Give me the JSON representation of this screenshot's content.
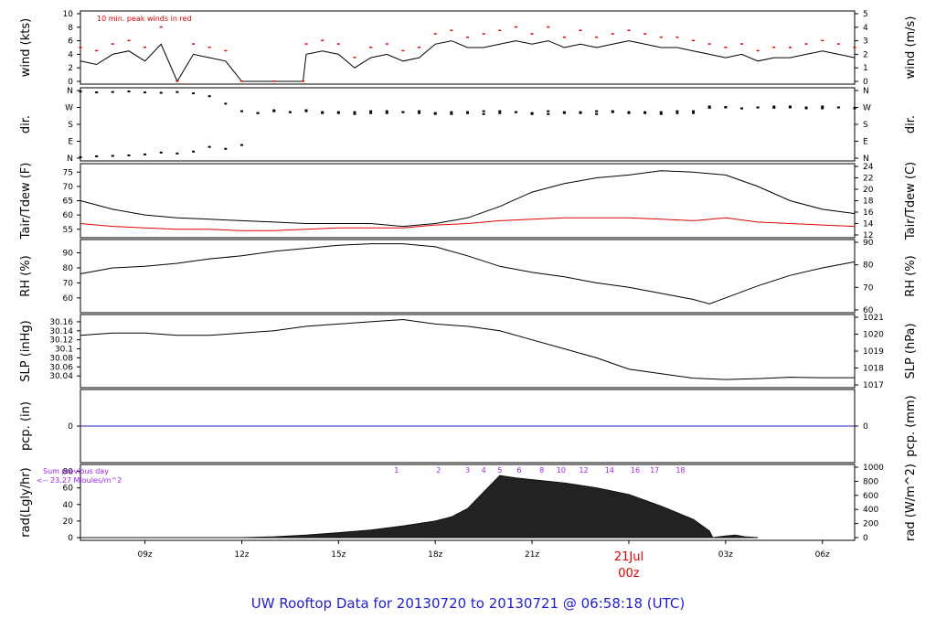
{
  "footer": {
    "title": "UW Rooftop Data for 20130720  to  20130721 @ 06:58:18  (UTC)"
  },
  "time_axis": {
    "start_hour": 7,
    "end_hour": 31,
    "ticks": [
      {
        "hour": 9,
        "label": "09z"
      },
      {
        "hour": 12,
        "label": "12z"
      },
      {
        "hour": 15,
        "label": "15z"
      },
      {
        "hour": 18,
        "label": "18z"
      },
      {
        "hour": 21,
        "label": "21z"
      },
      {
        "hour": 27,
        "label": "03z"
      },
      {
        "hour": 30,
        "label": "06z"
      }
    ],
    "date_label": {
      "hour": 24,
      "date": "21Jul",
      "time": "00z"
    }
  },
  "colors": {
    "black": "#000000",
    "red": "#e00000",
    "blue": "#1f1fd0",
    "purple": "#a020f0"
  },
  "chart_data": [
    {
      "type": "line",
      "id": "wind",
      "left_label": "wind (kts)",
      "right_label": "wind (m/s)",
      "annotation": "10 min. peak winds in red",
      "ylim": [
        0,
        10
      ],
      "left_ticks": [
        "0",
        "2",
        "4",
        "6",
        "8",
        "10"
      ],
      "right_ticks": [
        "0",
        "1",
        "2",
        "3",
        "4",
        "5"
      ],
      "x_hours": [
        7,
        7.5,
        8,
        8.5,
        9,
        9.5,
        10,
        10.5,
        11,
        11.5,
        12,
        13,
        13.9,
        14,
        14.5,
        15,
        15.5,
        16,
        16.5,
        17,
        17.5,
        18,
        18.5,
        19,
        19.5,
        20,
        20.5,
        21,
        21.5,
        22,
        22.5,
        23,
        23.5,
        24,
        24.5,
        25,
        25.5,
        26,
        26.5,
        27,
        27.5,
        28,
        28.5,
        29,
        29.5,
        30,
        30.5,
        31
      ],
      "series": [
        {
          "values": [
            3,
            2.5,
            4,
            4.5,
            3,
            5.5,
            0,
            4,
            3.5,
            3,
            0,
            0,
            0,
            4,
            4.5,
            4,
            2,
            3.5,
            4,
            3,
            3.5,
            5.5,
            6,
            5,
            5,
            5.5,
            6,
            5.5,
            6,
            5,
            5.5,
            5,
            5.5,
            6,
            5.5,
            5,
            5,
            4.5,
            4,
            3.5,
            4,
            3,
            3.5,
            3.5,
            4,
            4.5,
            4,
            3.5
          ]
        },
        {
          "values": [
            5,
            4.5,
            5.5,
            6,
            5,
            8,
            0,
            5.5,
            5,
            4.5,
            0,
            0,
            0,
            5.5,
            6,
            5.5,
            3.5,
            5,
            5.5,
            4.5,
            5,
            7,
            7.5,
            6.5,
            7,
            7.5,
            8,
            7,
            8,
            6.5,
            7.5,
            6.5,
            7,
            7.5,
            7,
            6.5,
            6.5,
            6,
            5.5,
            5,
            5.5,
            4.5,
            5,
            5,
            5.5,
            6,
            5.5,
            5
          ]
        }
      ]
    },
    {
      "type": "scatter",
      "id": "dir",
      "left_label": "dir.",
      "right_label": "dir.",
      "ylim": [
        0,
        360
      ],
      "left_ticks": [
        "N",
        "E",
        "S",
        "W",
        "N"
      ],
      "right_ticks": [
        "N",
        "E",
        "S",
        "W",
        "N"
      ],
      "x_hours": [
        7,
        7.5,
        8,
        8.5,
        9,
        9.5,
        10,
        10.5,
        11,
        11.5,
        12,
        12.5,
        13,
        13.5,
        14,
        14.5,
        15,
        15.5,
        16,
        16.5,
        17,
        17.5,
        18,
        18.5,
        19,
        19.5,
        20,
        20.5,
        21,
        21.5,
        22,
        22.5,
        23,
        23.5,
        24,
        24.5,
        25,
        25.5,
        26,
        26.5,
        27,
        27.5,
        28,
        28.5,
        29,
        29.5,
        30,
        30.5,
        31
      ],
      "series": [
        {
          "values": [
            5,
            10,
            12,
            15,
            20,
            30,
            25,
            35,
            60,
            50,
            70,
            240,
            255,
            245,
            250,
            240,
            245,
            235,
            240,
            250,
            245,
            240,
            235,
            245,
            240,
            235,
            250,
            245,
            240,
            235,
            245,
            240,
            250,
            245,
            240,
            245,
            235,
            240,
            250,
            275,
            270,
            265,
            270,
            275,
            270,
            265,
            275,
            270,
            265
          ]
        },
        {
          "values": [
            355,
            350,
            352,
            355,
            350,
            348,
            352,
            345,
            330,
            290,
            250,
            240,
            250,
            245,
            255,
            245,
            240,
            245,
            250,
            240,
            245,
            250,
            240,
            235,
            245,
            250,
            240,
            245,
            235,
            250,
            240,
            245,
            235,
            250,
            245,
            240,
            245,
            250,
            240,
            268,
            272,
            265,
            270,
            268,
            275,
            270,
            265,
            270,
            268
          ]
        }
      ]
    },
    {
      "type": "line",
      "id": "temp",
      "left_label": "Tair/Tdew (F)",
      "right_label": "Tair/Tdew (C)",
      "ylim": [
        53,
        77
      ],
      "left_ticks": [
        "55",
        "60",
        "65",
        "70",
        "75"
      ],
      "right_ticks": [
        "12",
        "14",
        "16",
        "18",
        "20",
        "22",
        "24"
      ],
      "x_hours": [
        7,
        8,
        9,
        10,
        11,
        12,
        13,
        14,
        15,
        16,
        17,
        18,
        19,
        20,
        21,
        22,
        23,
        24,
        25,
        26,
        27,
        28,
        29,
        30,
        31
      ],
      "series": [
        {
          "name": "Tair",
          "values": [
            65,
            62,
            60,
            59,
            58.5,
            58,
            57.5,
            57,
            57,
            57,
            56,
            57,
            59,
            63,
            68,
            71,
            73,
            74,
            75.5,
            75,
            74,
            70,
            65,
            62,
            60.5
          ]
        },
        {
          "name": "Tdew",
          "values": [
            57,
            56,
            55.5,
            55,
            55,
            54.5,
            54.5,
            55,
            55.5,
            55.5,
            55.5,
            56.5,
            57,
            58,
            58.5,
            59,
            59,
            59,
            58.5,
            58,
            59,
            57.5,
            57,
            56.5,
            56
          ]
        }
      ]
    },
    {
      "type": "line",
      "id": "rh",
      "left_label": "RH (%)",
      "right_label": "RH (%)",
      "ylim": [
        52,
        97
      ],
      "left_ticks": [
        "60",
        "70",
        "80",
        "90"
      ],
      "right_ticks": [
        "60",
        "70",
        "80",
        "90"
      ],
      "x_hours": [
        7,
        8,
        9,
        10,
        11,
        12,
        13,
        14,
        15,
        16,
        17,
        18,
        19,
        20,
        21,
        22,
        23,
        24,
        25,
        26,
        26.5,
        27,
        28,
        29,
        30,
        31
      ],
      "series": [
        {
          "values": [
            76,
            80,
            81,
            83,
            86,
            88,
            91,
            93,
            95,
            96,
            96,
            94,
            88,
            81,
            77,
            74,
            70,
            67,
            63,
            59,
            56,
            60,
            68,
            75,
            80,
            84
          ]
        }
      ]
    },
    {
      "type": "line",
      "id": "slp",
      "left_label": "SLP (inHg)",
      "right_label": "SLP (hPa)",
      "ylim": [
        30.02,
        30.17
      ],
      "left_ticks": [
        "30.04",
        "30.06",
        "30.08",
        "30.1",
        "30.12",
        "30.14",
        "30.16"
      ],
      "right_ticks": [
        "1017",
        "1018",
        "1019",
        "1020",
        "1021"
      ],
      "x_hours": [
        7,
        8,
        9,
        10,
        11,
        12,
        13,
        14,
        15,
        16,
        17,
        18,
        19,
        20,
        21,
        22,
        23,
        24,
        25,
        26,
        27,
        28,
        29,
        30,
        31
      ],
      "series": [
        {
          "values": [
            30.13,
            30.135,
            30.135,
            30.13,
            30.13,
            30.135,
            30.14,
            30.15,
            30.155,
            30.16,
            30.165,
            30.155,
            30.15,
            30.14,
            30.12,
            30.1,
            30.08,
            30.055,
            30.045,
            30.035,
            30.032,
            30.034,
            30.037,
            30.036,
            30.036
          ]
        }
      ]
    },
    {
      "type": "line",
      "id": "pcp",
      "left_label": "pcp. (in)",
      "right_label": "pcp. (mm)",
      "ylim": [
        -1,
        1
      ],
      "left_ticks": [
        "0"
      ],
      "right_ticks": [
        "0"
      ],
      "x_hours": [
        7,
        31
      ],
      "series": [
        {
          "values": [
            0,
            0
          ]
        }
      ]
    },
    {
      "type": "area",
      "id": "rad",
      "left_label": "rad(Lgly/hr)",
      "right_label": "rad (W/m^2)",
      "annotation_line1": "Sum previous day",
      "annotation_line2": "<-- 23.27 MJoules/m^2",
      "ylim": [
        0,
        85
      ],
      "left_ticks": [
        "0",
        "20",
        "40",
        "60",
        "80"
      ],
      "right_ticks": [
        "0",
        "200",
        "400",
        "600",
        "800",
        "1000"
      ],
      "hour_markers": [
        {
          "hour": 16.8,
          "label": "1"
        },
        {
          "hour": 18.1,
          "label": "2"
        },
        {
          "hour": 19,
          "label": "3"
        },
        {
          "hour": 19.5,
          "label": "4"
        },
        {
          "hour": 20.0,
          "label": "5"
        },
        {
          "hour": 20.6,
          "label": "6"
        },
        {
          "hour": 21.3,
          "label": "8"
        },
        {
          "hour": 21.9,
          "label": "10"
        },
        {
          "hour": 22.6,
          "label": "12"
        },
        {
          "hour": 23.4,
          "label": "14"
        },
        {
          "hour": 24.2,
          "label": "16"
        },
        {
          "hour": 24.8,
          "label": "17"
        },
        {
          "hour": 25.6,
          "label": "18"
        }
      ],
      "x_hours": [
        7,
        10,
        12,
        13,
        14,
        15,
        16,
        17,
        18,
        18.5,
        19,
        19.5,
        20,
        20.5,
        21,
        22,
        23,
        24,
        25,
        26,
        26.5,
        26.6,
        27,
        27.3,
        27.6,
        28
      ],
      "series": [
        {
          "values": [
            0,
            0,
            0,
            1,
            3,
            6,
            9,
            14,
            20,
            25,
            35,
            55,
            75,
            72,
            70,
            66,
            60,
            52,
            38,
            22,
            8,
            0,
            2,
            3,
            1,
            0
          ]
        }
      ]
    }
  ]
}
